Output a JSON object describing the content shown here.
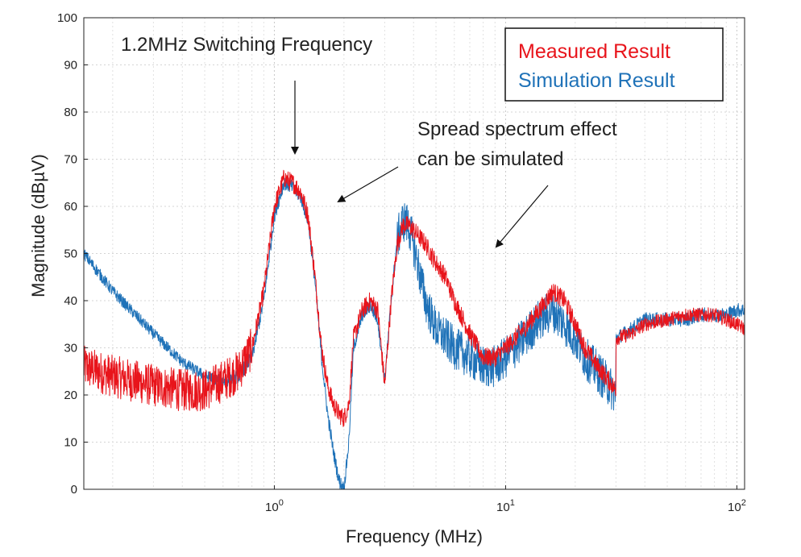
{
  "chart_data": {
    "type": "line",
    "title": "",
    "xlabel": "Frequency (MHz)",
    "ylabel": "Magnitude (dBµV)",
    "xscale": "log",
    "xlim": [
      0.15,
      108
    ],
    "ylim": [
      0,
      100
    ],
    "grid": true,
    "legend_position": "top-right",
    "x_ticks": [
      {
        "value": 1,
        "base": "10",
        "exp": "0"
      },
      {
        "value": 10,
        "base": "10",
        "exp": "1"
      },
      {
        "value": 100,
        "base": "10",
        "exp": "2"
      }
    ],
    "y_ticks": [
      "0",
      "10",
      "20",
      "30",
      "40",
      "50",
      "60",
      "70",
      "80",
      "90",
      "100"
    ],
    "legend": [
      "Measured Result",
      "Simulation Result"
    ],
    "annotations": {
      "switching": "1.2MHz Switching Frequency",
      "spread_line1": "Spread spectrum effect",
      "spread_line2": "can be simulated"
    },
    "series": [
      {
        "name": "Measured Result",
        "color": "#e8141b",
        "x": [
          0.15,
          0.2,
          0.3,
          0.4,
          0.5,
          0.6,
          0.7,
          0.8,
          0.9,
          1.0,
          1.1,
          1.2,
          1.3,
          1.4,
          1.5,
          1.6,
          1.7,
          1.8,
          1.9,
          2.0,
          2.1,
          2.2,
          2.4,
          2.6,
          2.8,
          3.0,
          3.2,
          3.4,
          3.6,
          3.8,
          4.0,
          4.5,
          5.0,
          5.5,
          6.0,
          7.0,
          8.0,
          9.0,
          10,
          12,
          14,
          16,
          18,
          20,
          22,
          25,
          28,
          30,
          30.01,
          35,
          40,
          50,
          60,
          70,
          80,
          90,
          100,
          108
        ],
        "y": [
          26,
          24,
          22,
          21,
          21,
          23,
          25,
          30,
          42,
          60,
          66,
          65,
          63,
          58,
          45,
          30,
          22,
          18,
          16,
          15,
          18,
          32,
          38,
          40,
          38,
          22,
          40,
          52,
          56,
          56,
          55,
          52,
          48,
          45,
          40,
          33,
          28,
          28,
          30,
          34,
          38,
          42,
          40,
          35,
          30,
          26,
          23,
          21,
          32,
          33,
          35,
          36,
          37,
          37,
          37,
          36,
          35,
          34
        ]
      },
      {
        "name": "Simulation Result",
        "color": "#1f72b8",
        "x": [
          0.15,
          0.2,
          0.3,
          0.4,
          0.5,
          0.6,
          0.7,
          0.8,
          0.9,
          1.0,
          1.1,
          1.2,
          1.3,
          1.4,
          1.5,
          1.6,
          1.7,
          1.8,
          1.9,
          2.0,
          2.1,
          2.2,
          2.4,
          2.6,
          2.8,
          3.0,
          3.2,
          3.4,
          3.6,
          3.8,
          4.0,
          4.5,
          5.0,
          5.5,
          6.0,
          7.0,
          8.0,
          9.0,
          10,
          12,
          14,
          16,
          18,
          20,
          22,
          25,
          28,
          30,
          30.01,
          35,
          40,
          50,
          60,
          70,
          80,
          90,
          100,
          108
        ],
        "y": [
          50,
          42,
          33,
          27,
          24,
          23,
          24,
          28,
          40,
          58,
          65,
          64,
          62,
          57,
          44,
          28,
          16,
          8,
          2,
          0,
          10,
          30,
          37,
          39,
          36,
          23,
          40,
          53,
          57,
          56,
          52,
          40,
          34,
          32,
          30,
          28,
          26,
          26,
          28,
          32,
          36,
          38,
          35,
          32,
          28,
          25,
          22,
          20,
          32,
          34,
          36,
          36,
          36,
          37,
          37,
          37,
          38,
          38
        ]
      }
    ]
  }
}
